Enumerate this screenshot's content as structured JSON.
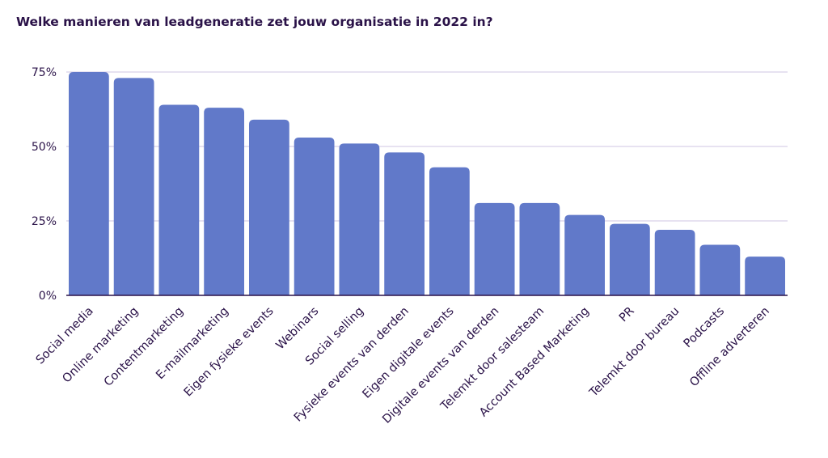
{
  "chart_data": {
    "type": "bar",
    "title": "Welke manieren van leadgeneratie zet jouw organisatie in 2022 in?",
    "xlabel": "",
    "ylabel": "",
    "categories": [
      "Social media",
      "Online marketing",
      "Contentmarketing",
      "E-mailmarketing",
      "Eigen fysieke events",
      "Webinars",
      "Social selling",
      "Fysieke events van derden",
      "Eigen digitale events",
      "Digitale events van derden",
      "Telemkt door salesteam",
      "Account Based Marketing",
      "PR",
      "Telemkt door bureau",
      "Podcasts",
      "Offline adverteren"
    ],
    "values": [
      75,
      73,
      64,
      63,
      59,
      53,
      51,
      48,
      43,
      31,
      31,
      27,
      24,
      22,
      17,
      13
    ],
    "ylim": [
      0,
      75
    ],
    "yticks": [
      0,
      25,
      50,
      75
    ],
    "ytick_labels": [
      "0%",
      "25%",
      "50%",
      "75%"
    ],
    "grid": true,
    "legend": "none",
    "colors": {
      "bar": "#6179c9",
      "grid": "#cfc6e3",
      "axis": "#2a1248",
      "text": "#2a1248"
    }
  }
}
